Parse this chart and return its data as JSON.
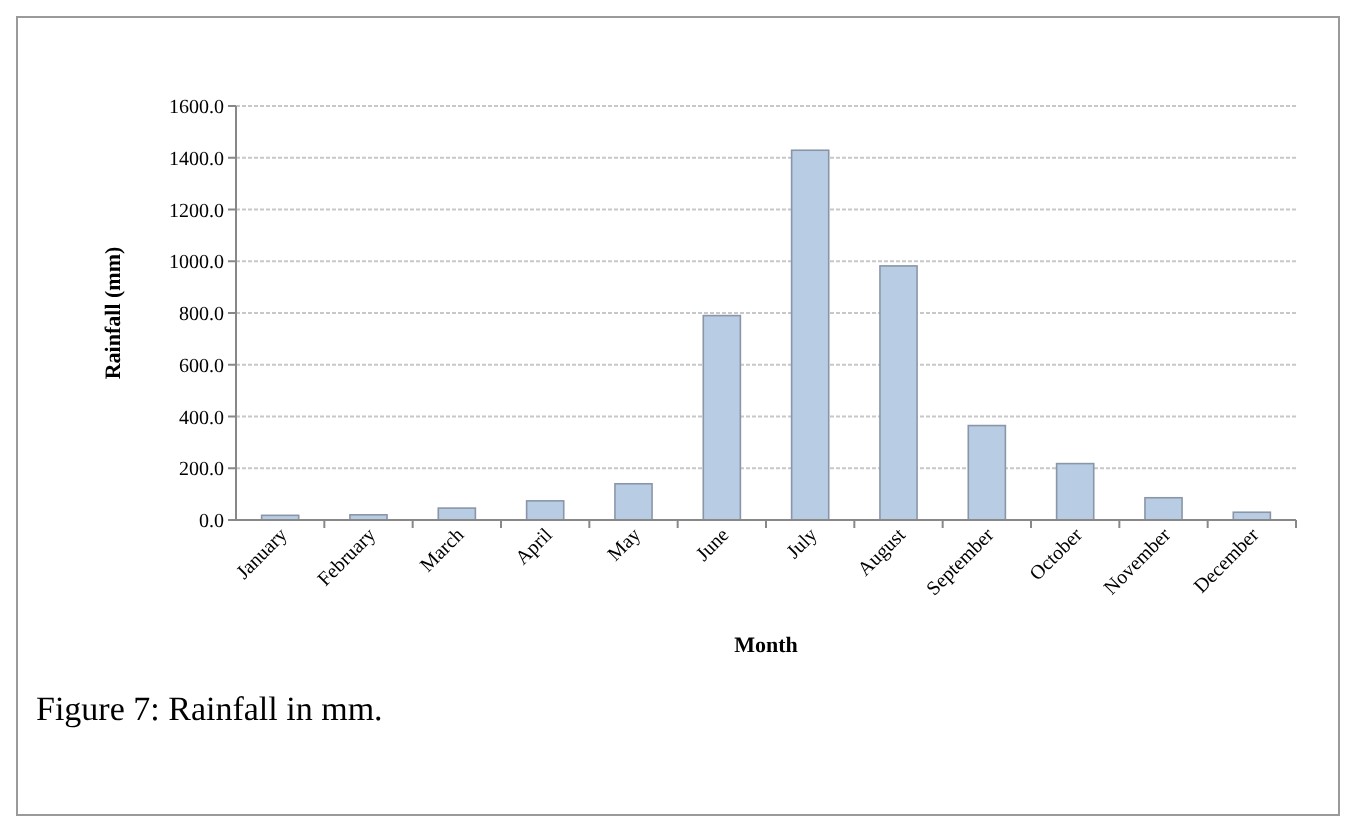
{
  "chart_data": {
    "type": "bar",
    "xlabel": "Month",
    "ylabel": "Rainfall (mm)",
    "categories": [
      "January",
      "February",
      "March",
      "April",
      "May",
      "June",
      "July",
      "August",
      "September",
      "October",
      "November",
      "December"
    ],
    "values": [
      18,
      20,
      46,
      74,
      140,
      790,
      1429,
      982,
      365,
      218,
      86,
      30
    ],
    "color": "#b8cce4",
    "ylim": [
      0,
      1600
    ],
    "yticks": [
      {
        "value": 0,
        "label": "0.0"
      },
      {
        "value": 200,
        "label": "200.0"
      },
      {
        "value": 400,
        "label": "400.0"
      },
      {
        "value": 600,
        "label": "600.0"
      },
      {
        "value": 800,
        "label": "800.0"
      },
      {
        "value": 1000,
        "label": "1000.0"
      },
      {
        "value": 1200,
        "label": "1200.0"
      },
      {
        "value": 1400,
        "label": "1400.0"
      },
      {
        "value": 1600,
        "label": "1600.0"
      }
    ],
    "grid": "y",
    "annotations": [
      "Figure 7: Rainfall in mm."
    ]
  }
}
